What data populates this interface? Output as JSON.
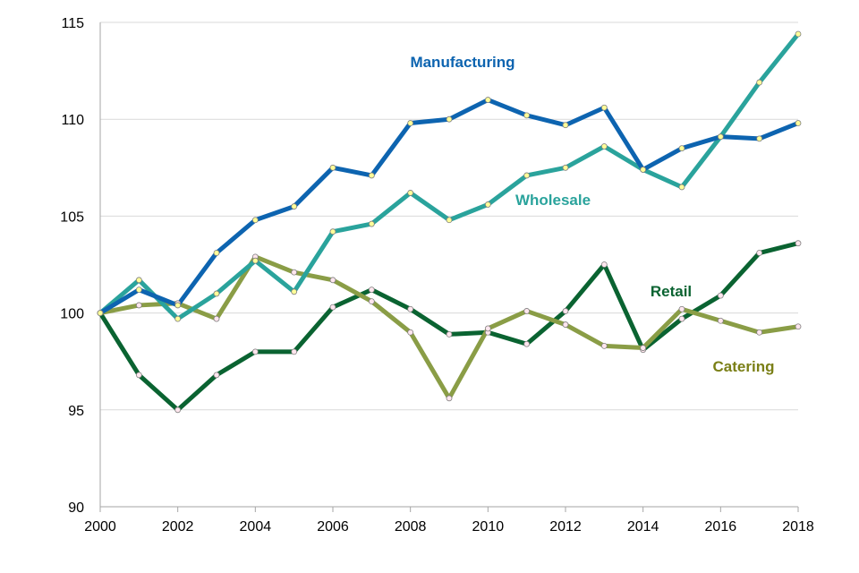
{
  "chart_data": {
    "type": "line",
    "title": "",
    "xlabel": "",
    "ylabel": "",
    "x": [
      2000,
      2001,
      2002,
      2003,
      2004,
      2005,
      2006,
      2007,
      2008,
      2009,
      2010,
      2011,
      2012,
      2013,
      2014,
      2015,
      2016,
      2017,
      2018
    ],
    "xlim": [
      2000,
      2018
    ],
    "ylim": [
      90,
      115
    ],
    "x_ticks": [
      "2000",
      "2002",
      "2004",
      "2006",
      "2008",
      "2010",
      "2012",
      "2014",
      "2016",
      "2018"
    ],
    "y_ticks": [
      "90",
      "95",
      "100",
      "105",
      "110",
      "115"
    ],
    "grid": "horizontal",
    "legend": "inline labels",
    "series": [
      {
        "name": "Manufacturing",
        "color": "#0d64b0",
        "marker_fill": "#ffff99",
        "values": [
          100,
          101.2,
          100.4,
          103.1,
          104.8,
          105.5,
          107.5,
          107.1,
          109.8,
          110,
          111,
          110.2,
          109.7,
          110.6,
          107.4,
          108.5,
          109.1,
          109,
          109.8
        ]
      },
      {
        "name": "Wholesale",
        "color": "#2aa39c",
        "marker_fill": "#ffff99",
        "values": [
          100,
          101.7,
          99.7,
          101,
          102.7,
          101.1,
          104.2,
          104.6,
          106.2,
          104.8,
          105.6,
          107.1,
          107.5,
          108.6,
          107.4,
          106.5,
          109.1,
          111.9,
          114.4
        ]
      },
      {
        "name": "Retail",
        "color": "#0a6331",
        "marker_fill": "#ffe6ee",
        "values": [
          100,
          96.8,
          95,
          96.8,
          98,
          98,
          100.3,
          101.2,
          100.2,
          98.9,
          99,
          98.4,
          100.1,
          102.5,
          98.1,
          99.7,
          100.9,
          103.1,
          103.6
        ]
      },
      {
        "name": "Catering",
        "color": "#8a9d46",
        "marker_fill": "#ffe6ee",
        "values": [
          100,
          100.4,
          100.5,
          99.7,
          102.9,
          102.1,
          101.7,
          100.6,
          99,
          95.6,
          99.2,
          100.1,
          99.4,
          98.3,
          98.2,
          100.2,
          99.6,
          99,
          99.3
        ]
      }
    ],
    "draw_order": [
      "Retail",
      "Catering",
      "Wholesale",
      "Manufacturing"
    ]
  }
}
